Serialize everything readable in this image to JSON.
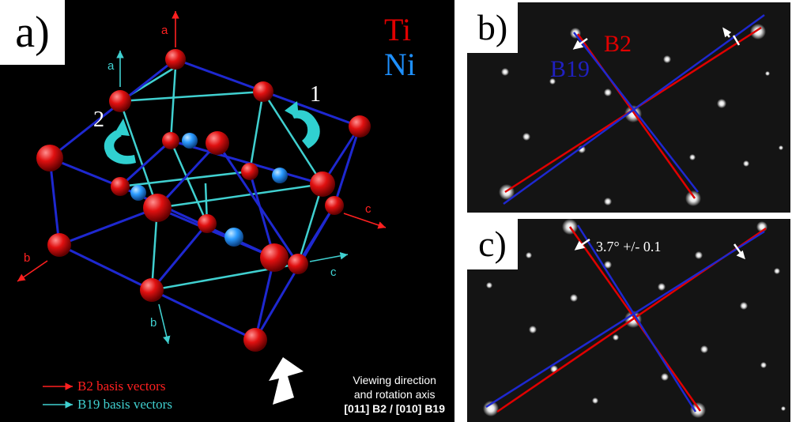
{
  "panel_a": {
    "label": "a)",
    "legend_atoms": [
      {
        "symbol": "Ti",
        "color": "#e00000"
      },
      {
        "symbol": "Ni",
        "color": "#1e90ff"
      }
    ],
    "axes": {
      "b2": {
        "a": "a",
        "b": "b",
        "c": "c",
        "color": "#ff2020"
      },
      "b19": {
        "a": "a",
        "b": "b",
        "c": "c",
        "color": "#40d0d0"
      }
    },
    "rotation_labels": [
      "1",
      "2"
    ],
    "legend_vectors": [
      {
        "text": "B2 basis vectors",
        "color": "#ff2020"
      },
      {
        "text": "B19 basis vectors",
        "color": "#40d0d0"
      }
    ],
    "viewing": {
      "line1": "Viewing direction",
      "line2": "and rotation axis",
      "line3": "[011] B2 / [010] B19"
    }
  },
  "panel_b": {
    "label": "b)",
    "phase_labels": [
      {
        "text": "B2",
        "color": "#e00000"
      },
      {
        "text": "B19",
        "color": "#2020c0"
      }
    ]
  },
  "panel_c": {
    "label": "c)",
    "angle_text": "3.7° +/- 0.1"
  }
}
